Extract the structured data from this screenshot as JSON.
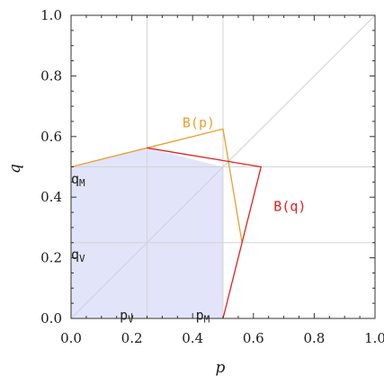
{
  "chart_data": {
    "type": "line",
    "xlabel": "p",
    "ylabel": "q",
    "xlim": [
      0,
      1
    ],
    "ylim": [
      0,
      1
    ],
    "x_ticks": [
      "0.0",
      "0.2",
      "0.4",
      "0.6",
      "0.8",
      "1.0"
    ],
    "y_ticks": [
      "0.0",
      "0.2",
      "0.4",
      "0.6",
      "0.8",
      "1.0"
    ],
    "grid": "partial",
    "reference_lines": {
      "diagonal": [
        [
          0,
          0
        ],
        [
          1,
          1
        ]
      ],
      "vertical_x": [
        0.25,
        0.5
      ],
      "horizontal_y": [
        0.25,
        0.5
      ]
    },
    "series": [
      {
        "name": "B(p)",
        "color": "#e8a030",
        "points": [
          [
            0.0,
            0.5
          ],
          [
            0.25,
            0.5625
          ],
          [
            0.5,
            0.625
          ],
          [
            0.5625,
            0.25
          ]
        ]
      },
      {
        "name": "B(q)",
        "color": "#e02020",
        "points": [
          [
            0.25,
            0.5625
          ],
          [
            0.625,
            0.5
          ],
          [
            0.5625,
            0.25
          ],
          [
            0.5,
            0.0
          ]
        ]
      }
    ],
    "shaded_region": {
      "color": "#e2e4fa",
      "points": [
        [
          0,
          0
        ],
        [
          0,
          0.5
        ],
        [
          0.25,
          0.5625
        ],
        [
          0.5,
          0.5
        ],
        [
          0.5,
          0
        ]
      ]
    },
    "annotations": [
      {
        "base": "q",
        "sub": "M",
        "x": 0.0,
        "y": 0.46
      },
      {
        "base": "q",
        "sub": "V",
        "x": 0.0,
        "y": 0.21
      },
      {
        "base": "p",
        "sub": "V",
        "x": 0.16,
        "y": 0.01
      },
      {
        "base": "p",
        "sub": "M",
        "x": 0.41,
        "y": 0.01
      }
    ]
  }
}
